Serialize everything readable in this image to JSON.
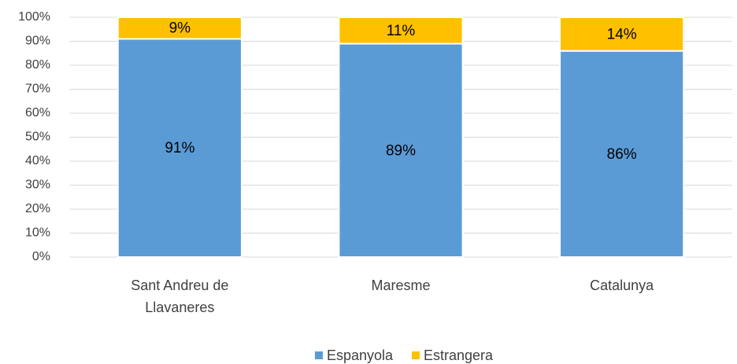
{
  "chart_data": {
    "type": "stacked_bar",
    "categories": [
      "Sant Andreu de Llavaneres",
      "Maresme",
      "Catalunya"
    ],
    "series": [
      {
        "name": "Espanyola",
        "color": "#5b9bd5",
        "values": [
          91,
          89,
          86
        ],
        "value_labels": [
          "91%",
          "89%",
          "86%"
        ]
      },
      {
        "name": "Estrangera",
        "color": "#ffc000",
        "values": [
          9,
          11,
          14
        ],
        "value_labels": [
          "9%",
          "11%",
          "14%"
        ]
      }
    ],
    "ylim": [
      0,
      100
    ],
    "yticks": [
      {
        "value": 0,
        "label": "0%"
      },
      {
        "value": 10,
        "label": "10%"
      },
      {
        "value": 20,
        "label": "20%"
      },
      {
        "value": 30,
        "label": "30%"
      },
      {
        "value": 40,
        "label": "40%"
      },
      {
        "value": 50,
        "label": "50%"
      },
      {
        "value": 60,
        "label": "60%"
      },
      {
        "value": 70,
        "label": "70%"
      },
      {
        "value": 80,
        "label": "80%"
      },
      {
        "value": 90,
        "label": "90%"
      },
      {
        "value": 100,
        "label": "100%"
      }
    ],
    "grid": true,
    "legend": "bottom"
  }
}
